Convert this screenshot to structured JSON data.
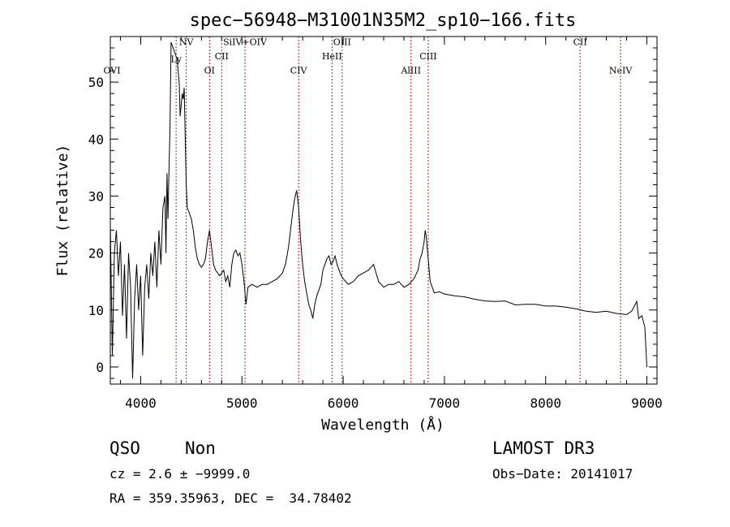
{
  "chart_data": {
    "type": "line",
    "title": "spec−56948−M31001N35M2_sp10−166.fits",
    "xlabel": "Wavelength (Å)",
    "ylabel": "Flux (relative)",
    "xlim": [
      3700,
      9100
    ],
    "ylim": [
      -3,
      58
    ],
    "xticks": [
      4000,
      5000,
      6000,
      7000,
      8000,
      9000
    ],
    "yticks": [
      0,
      10,
      20,
      30,
      40,
      50
    ],
    "grid": false,
    "series": [
      {
        "color": "#000000",
        "points": [
          [
            3700,
            25
          ],
          [
            3720,
            2
          ],
          [
            3740,
            20
          ],
          [
            3760,
            24
          ],
          [
            3780,
            16
          ],
          [
            3800,
            22
          ],
          [
            3820,
            9
          ],
          [
            3840,
            18
          ],
          [
            3860,
            5
          ],
          [
            3880,
            20
          ],
          [
            3900,
            14
          ],
          [
            3920,
            -2
          ],
          [
            3940,
            12
          ],
          [
            3960,
            18
          ],
          [
            3980,
            10
          ],
          [
            4000,
            16
          ],
          [
            4020,
            2
          ],
          [
            4040,
            14
          ],
          [
            4060,
            18
          ],
          [
            4080,
            12
          ],
          [
            4100,
            20
          ],
          [
            4120,
            16
          ],
          [
            4140,
            22
          ],
          [
            4160,
            14
          ],
          [
            4180,
            24
          ],
          [
            4200,
            18
          ],
          [
            4220,
            28
          ],
          [
            4240,
            30
          ],
          [
            4250,
            20
          ],
          [
            4260,
            34
          ],
          [
            4270,
            26
          ],
          [
            4280,
            35
          ],
          [
            4290,
            42
          ],
          [
            4300,
            57
          ],
          [
            4320,
            56
          ],
          [
            4340,
            55
          ],
          [
            4360,
            54
          ],
          [
            4380,
            50
          ],
          [
            4390,
            44
          ],
          [
            4400,
            46
          ],
          [
            4410,
            48
          ],
          [
            4420,
            47
          ],
          [
            4430,
            49
          ],
          [
            4440,
            40
          ],
          [
            4450,
            32
          ],
          [
            4460,
            28
          ],
          [
            4480,
            27
          ],
          [
            4500,
            26
          ],
          [
            4520,
            24
          ],
          [
            4540,
            21
          ],
          [
            4560,
            19
          ],
          [
            4580,
            18
          ],
          [
            4600,
            17.5
          ],
          [
            4620,
            18
          ],
          [
            4640,
            19
          ],
          [
            4660,
            22
          ],
          [
            4680,
            24
          ],
          [
            4700,
            21
          ],
          [
            4720,
            18
          ],
          [
            4740,
            17
          ],
          [
            4760,
            16.5
          ],
          [
            4780,
            16
          ],
          [
            4800,
            16.5
          ],
          [
            4820,
            17
          ],
          [
            4840,
            15
          ],
          [
            4860,
            16
          ],
          [
            4880,
            14
          ],
          [
            4900,
            18
          ],
          [
            4920,
            20
          ],
          [
            4940,
            20.5
          ],
          [
            4960,
            19.5
          ],
          [
            4980,
            20
          ],
          [
            5000,
            18
          ],
          [
            5020,
            15
          ],
          [
            5040,
            11
          ],
          [
            5060,
            14
          ],
          [
            5100,
            14.5
          ],
          [
            5150,
            14
          ],
          [
            5200,
            14.5
          ],
          [
            5250,
            14.5
          ],
          [
            5300,
            15
          ],
          [
            5350,
            15.5
          ],
          [
            5400,
            16.5
          ],
          [
            5430,
            18
          ],
          [
            5460,
            21
          ],
          [
            5500,
            27
          ],
          [
            5520,
            29.5
          ],
          [
            5540,
            31
          ],
          [
            5560,
            28
          ],
          [
            5580,
            22
          ],
          [
            5600,
            18
          ],
          [
            5620,
            15
          ],
          [
            5640,
            13
          ],
          [
            5660,
            11
          ],
          [
            5680,
            10
          ],
          [
            5700,
            8.5
          ],
          [
            5720,
            11
          ],
          [
            5740,
            12.5
          ],
          [
            5760,
            13.5
          ],
          [
            5780,
            14.5
          ],
          [
            5800,
            17
          ],
          [
            5820,
            18
          ],
          [
            5840,
            19
          ],
          [
            5860,
            19.5
          ],
          [
            5880,
            18
          ],
          [
            5900,
            18.5
          ],
          [
            5920,
            19.5
          ],
          [
            5940,
            18
          ],
          [
            5960,
            17
          ],
          [
            5980,
            16
          ],
          [
            6000,
            15.5
          ],
          [
            6050,
            14.5
          ],
          [
            6100,
            15
          ],
          [
            6150,
            16
          ],
          [
            6200,
            16.5
          ],
          [
            6250,
            17
          ],
          [
            6300,
            18
          ],
          [
            6350,
            15
          ],
          [
            6400,
            14
          ],
          [
            6450,
            14.5
          ],
          [
            6500,
            14.5
          ],
          [
            6550,
            15
          ],
          [
            6600,
            14
          ],
          [
            6650,
            14.5
          ],
          [
            6700,
            15.5
          ],
          [
            6740,
            17
          ],
          [
            6760,
            19
          ],
          [
            6780,
            20
          ],
          [
            6800,
            22
          ],
          [
            6810,
            24
          ],
          [
            6820,
            23
          ],
          [
            6840,
            19
          ],
          [
            6860,
            15
          ],
          [
            6880,
            14
          ],
          [
            6900,
            13
          ],
          [
            6950,
            13.2
          ],
          [
            7000,
            12.8
          ],
          [
            7100,
            12.5
          ],
          [
            7200,
            12.3
          ],
          [
            7300,
            11.9
          ],
          [
            7400,
            11.6
          ],
          [
            7500,
            11.5
          ],
          [
            7600,
            11.6
          ],
          [
            7700,
            10.9
          ],
          [
            7800,
            11
          ],
          [
            7900,
            11
          ],
          [
            8000,
            10.7
          ],
          [
            8100,
            10.7
          ],
          [
            8200,
            10.5
          ],
          [
            8300,
            10.2
          ],
          [
            8400,
            9.8
          ],
          [
            8500,
            9.6
          ],
          [
            8600,
            9.8
          ],
          [
            8700,
            9.4
          ],
          [
            8800,
            9.2
          ],
          [
            8850,
            9.8
          ],
          [
            8900,
            11.5
          ],
          [
            8920,
            8.5
          ],
          [
            8950,
            9
          ],
          [
            8980,
            7
          ],
          [
            9000,
            0
          ]
        ]
      }
    ],
    "emission_lines": [
      {
        "label": "OVI",
        "wavelength": 3690,
        "label_flux": 51.5
      },
      {
        "label": "Ly",
        "wavelength": 4350,
        "label_flux": 53.5
      },
      {
        "label": "NV",
        "wavelength": 4450,
        "label_flux": 56.5
      },
      {
        "label": "OI",
        "wavelength": 4680,
        "label_flux": 51.5
      },
      {
        "label": "CII",
        "wavelength": 4800,
        "label_flux": 54
      },
      {
        "label": "SiIV+OIV",
        "wavelength": 5030,
        "label_flux": 56.5
      },
      {
        "label": "CIV",
        "wavelength": 5560,
        "label_flux": 51.5
      },
      {
        "label": "HeII",
        "wavelength": 5890,
        "label_flux": 54
      },
      {
        "label": "OIII",
        "wavelength": 5990,
        "label_flux": 56.5
      },
      {
        "label": "AlIII",
        "wavelength": 6670,
        "label_flux": 51.5
      },
      {
        "label": "CIII",
        "wavelength": 6840,
        "label_flux": 54
      },
      {
        "label": "CII",
        "wavelength": 8340,
        "label_flux": 56.5
      },
      {
        "label": "NeIV",
        "wavelength": 8740,
        "label_flux": 51.5
      }
    ],
    "line_marker_color": "#b22222"
  },
  "info": {
    "class": "QSO",
    "subclass": "Non",
    "survey": "LAMOST DR3",
    "cz": "cz = 2.6 ± −9999.0",
    "obs_date": "Obs−Date: 20141017",
    "coords": "RA = 359.35963, DEC =  34.78402"
  }
}
